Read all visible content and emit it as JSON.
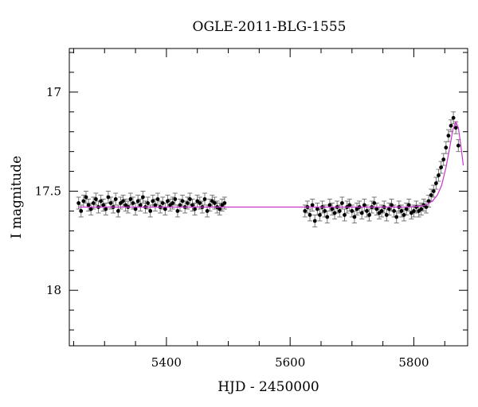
{
  "chart_data": {
    "type": "scatter",
    "title": "OGLE-2011-BLG-1555",
    "xlabel": "HJD - 2450000",
    "ylabel": "I magnitude",
    "xlim": [
      5243,
      5887
    ],
    "ylim": [
      18.28,
      16.78
    ],
    "y_inverted": true,
    "x_ticks": [
      5400,
      5600,
      5800
    ],
    "y_ticks": [
      17,
      17.5,
      18
    ],
    "y_tick_labels": [
      "17",
      "17.5",
      "18"
    ],
    "grid": false,
    "legend": "none",
    "colors": {
      "points": "#000000",
      "errorbars": "#777777",
      "model": "#cc33cc"
    },
    "series": [
      {
        "marker": "filled-circle",
        "x": [
          5258,
          5262,
          5266,
          5270,
          5274,
          5278,
          5282,
          5286,
          5290,
          5294,
          5298,
          5302,
          5306,
          5310,
          5314,
          5318,
          5322,
          5326,
          5330,
          5334,
          5338,
          5342,
          5346,
          5350,
          5354,
          5358,
          5362,
          5366,
          5370,
          5374,
          5378,
          5382,
          5386,
          5390,
          5394,
          5398,
          5402,
          5406,
          5410,
          5414,
          5418,
          5422,
          5426,
          5430,
          5434,
          5438,
          5442,
          5446,
          5450,
          5454,
          5458,
          5462,
          5466,
          5470,
          5474,
          5478,
          5482,
          5486,
          5490,
          5494,
          5624,
          5628,
          5632,
          5636,
          5640,
          5644,
          5648,
          5652,
          5656,
          5660,
          5664,
          5668,
          5672,
          5676,
          5680,
          5684,
          5688,
          5692,
          5696,
          5700,
          5704,
          5708,
          5712,
          5716,
          5720,
          5724,
          5728,
          5732,
          5736,
          5740,
          5744,
          5748,
          5752,
          5756,
          5760,
          5764,
          5768,
          5772,
          5776,
          5780,
          5784,
          5788,
          5792,
          5796,
          5800,
          5804,
          5808,
          5812,
          5816,
          5820,
          5824,
          5828,
          5832,
          5836,
          5840,
          5844,
          5848,
          5852,
          5856,
          5860,
          5864,
          5868,
          5872
        ],
        "y": [
          17.56,
          17.6,
          17.55,
          17.53,
          17.57,
          17.59,
          17.56,
          17.54,
          17.58,
          17.55,
          17.57,
          17.59,
          17.53,
          17.56,
          17.58,
          17.54,
          17.6,
          17.56,
          17.55,
          17.57,
          17.58,
          17.54,
          17.56,
          17.59,
          17.55,
          17.57,
          17.53,
          17.58,
          17.56,
          17.6,
          17.55,
          17.57,
          17.54,
          17.58,
          17.56,
          17.59,
          17.55,
          17.57,
          17.56,
          17.54,
          17.6,
          17.57,
          17.55,
          17.58,
          17.56,
          17.54,
          17.57,
          17.59,
          17.55,
          17.56,
          17.58,
          17.54,
          17.6,
          17.57,
          17.55,
          17.56,
          17.58,
          17.59,
          17.57,
          17.56,
          17.6,
          17.58,
          17.62,
          17.57,
          17.65,
          17.59,
          17.62,
          17.58,
          17.6,
          17.63,
          17.57,
          17.59,
          17.61,
          17.58,
          17.6,
          17.56,
          17.62,
          17.58,
          17.57,
          17.6,
          17.63,
          17.59,
          17.58,
          17.61,
          17.57,
          17.6,
          17.62,
          17.58,
          17.56,
          17.59,
          17.61,
          17.6,
          17.58,
          17.62,
          17.59,
          17.57,
          17.6,
          17.63,
          17.58,
          17.6,
          17.62,
          17.59,
          17.57,
          17.61,
          17.6,
          17.58,
          17.6,
          17.59,
          17.57,
          17.58,
          17.55,
          17.52,
          17.5,
          17.46,
          17.42,
          17.38,
          17.34,
          17.28,
          17.22,
          17.17,
          17.13,
          17.18,
          17.27
        ]
      }
    ],
    "model": {
      "name": "",
      "x": [
        5258,
        5300,
        5400,
        5500,
        5600,
        5700,
        5760,
        5790,
        5810,
        5820,
        5830,
        5838,
        5845,
        5852,
        5858,
        5863,
        5868,
        5872,
        5876,
        5880
      ],
      "y": [
        17.58,
        17.58,
        17.58,
        17.58,
        17.58,
        17.58,
        17.58,
        17.58,
        17.575,
        17.57,
        17.55,
        17.52,
        17.47,
        17.38,
        17.28,
        17.19,
        17.15,
        17.18,
        17.27,
        17.37
      ]
    }
  }
}
